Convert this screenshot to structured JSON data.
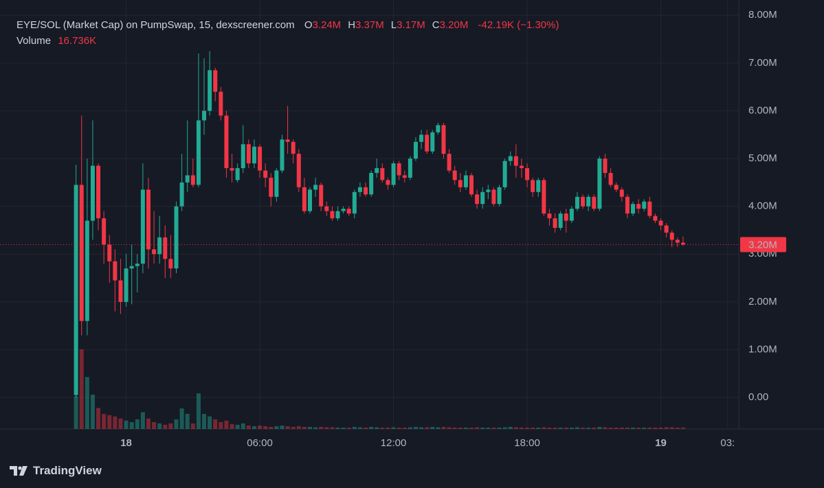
{
  "chart_data": {
    "type": "candlestick",
    "title": "EYE/SOL (Market Cap) on PumpSwap, 15, dexscreener.com",
    "ohlc_legend": [
      {
        "label": "O",
        "value": "3.24M"
      },
      {
        "label": "H",
        "value": "3.37M"
      },
      {
        "label": "L",
        "value": "3.17M"
      },
      {
        "label": "C",
        "value": "3.20M"
      }
    ],
    "change": "-42.19K (−1.30%)",
    "volume_name": "Volume",
    "volume_value": "16.736K",
    "up_color": "#22ab94",
    "down_color": "#f23645",
    "grid": true,
    "x": [
      -2.25,
      -2,
      -1.75,
      -1.5,
      -1.25,
      -1,
      -0.75,
      -0.5,
      -0.25,
      0,
      0.25,
      0.5,
      0.75,
      1,
      1.25,
      1.5,
      1.75,
      2,
      2.25,
      2.5,
      2.75,
      3,
      3.25,
      3.5,
      3.75,
      4,
      4.25,
      4.5,
      4.75,
      5,
      5.25,
      5.5,
      5.75,
      6,
      6.25,
      6.5,
      6.75,
      7,
      7.25,
      7.5,
      7.75,
      8,
      8.25,
      8.5,
      8.75,
      9,
      9.25,
      9.5,
      9.75,
      10,
      10.25,
      10.5,
      10.75,
      11,
      11.25,
      11.5,
      11.75,
      12,
      12.25,
      12.5,
      12.75,
      13,
      13.25,
      13.5,
      13.75,
      14,
      14.25,
      14.5,
      14.75,
      15,
      15.25,
      15.5,
      15.75,
      16,
      16.25,
      16.5,
      16.75,
      17,
      17.25,
      17.5,
      17.75,
      18,
      18.25,
      18.5,
      18.75,
      19,
      19.25,
      19.5,
      19.75,
      20,
      20.25,
      20.5,
      20.75,
      21,
      21.25,
      21.5,
      21.75,
      22,
      22.25,
      22.5,
      22.75,
      23,
      23.25,
      23.5,
      23.75,
      24,
      24.25,
      24.5,
      24.75,
      25
    ],
    "open": [
      0.05,
      4.45,
      1.6,
      3.7,
      4.85,
      3.75,
      3.2,
      2.85,
      2.45,
      2.0,
      2.7,
      2.75,
      2.8,
      4.35,
      3.1,
      3.0,
      3.35,
      2.9,
      2.7,
      4.0,
      4.5,
      4.65,
      4.45,
      5.8,
      6.0,
      6.85,
      6.4,
      5.9,
      4.8,
      4.55,
      4.8,
      5.3,
      4.9,
      5.25,
      4.75,
      4.6,
      4.2,
      4.75,
      5.4,
      5.35,
      5.1,
      4.4,
      3.9,
      4.35,
      4.45,
      4.0,
      3.9,
      3.75,
      3.9,
      3.95,
      3.85,
      4.3,
      4.4,
      4.25,
      4.7,
      4.8,
      4.55,
      4.45,
      4.9,
      4.65,
      4.6,
      5.0,
      5.35,
      5.5,
      5.15,
      5.55,
      5.7,
      5.1,
      4.75,
      4.55,
      4.4,
      4.65,
      4.25,
      4.05,
      4.3,
      4.35,
      4.05,
      4.4,
      4.95,
      5.05,
      4.85,
      4.8,
      4.55,
      4.3,
      4.55,
      3.85,
      3.75,
      3.55,
      3.85,
      3.7,
      3.95,
      4.2,
      4.0,
      4.2,
      3.95,
      5.0,
      4.7,
      4.45,
      4.35,
      4.2,
      3.85,
      4.05,
      3.95,
      4.1,
      3.8,
      3.7,
      3.6,
      3.45,
      3.3,
      3.24
    ],
    "high": [
      4.87,
      5.9,
      5.0,
      5.8,
      4.9,
      3.9,
      3.4,
      3.1,
      2.9,
      3.0,
      3.2,
      3.0,
      4.9,
      4.6,
      3.9,
      3.8,
      3.6,
      3.4,
      4.1,
      5.1,
      5.8,
      5.0,
      7.2,
      7.1,
      7.25,
      6.9,
      6.5,
      6.0,
      5.1,
      4.9,
      5.7,
      5.4,
      5.4,
      5.3,
      4.9,
      4.7,
      4.8,
      5.5,
      6.1,
      5.4,
      5.2,
      4.6,
      4.4,
      4.6,
      4.5,
      4.1,
      4.0,
      4.0,
      4.0,
      4.0,
      4.35,
      4.5,
      4.5,
      4.75,
      5.0,
      4.9,
      4.6,
      4.95,
      4.95,
      4.75,
      5.05,
      5.45,
      5.6,
      5.6,
      5.6,
      5.75,
      5.75,
      5.2,
      4.85,
      4.7,
      4.75,
      4.7,
      4.35,
      4.4,
      4.45,
      4.4,
      4.45,
      5.0,
      5.15,
      5.3,
      5.0,
      4.9,
      4.6,
      4.6,
      4.6,
      3.95,
      3.85,
      3.9,
      3.95,
      4.0,
      4.3,
      4.25,
      4.25,
      4.25,
      5.05,
      5.1,
      4.8,
      4.5,
      4.4,
      4.25,
      4.1,
      4.15,
      4.15,
      4.2,
      3.85,
      3.75,
      3.65,
      3.5,
      3.35,
      3.37
    ],
    "low": [
      0,
      1.3,
      1.3,
      3.3,
      3.5,
      2.8,
      2.4,
      1.8,
      1.75,
      1.9,
      1.95,
      2.2,
      2.6,
      2.7,
      2.8,
      2.8,
      2.5,
      2.5,
      2.6,
      3.9,
      4.3,
      4.4,
      4.4,
      5.5,
      5.9,
      6.2,
      5.8,
      4.6,
      4.5,
      4.5,
      4.7,
      4.8,
      4.8,
      4.6,
      4.4,
      4.0,
      4.1,
      4.7,
      5.1,
      4.9,
      4.3,
      3.85,
      3.85,
      4.2,
      3.9,
      3.8,
      3.7,
      3.7,
      3.85,
      3.8,
      3.75,
      4.2,
      4.2,
      4.2,
      4.6,
      4.5,
      4.35,
      4.4,
      4.55,
      4.5,
      4.55,
      4.95,
      5.2,
      5.1,
      5.1,
      5.5,
      5.0,
      4.7,
      4.45,
      4.3,
      4.35,
      4.2,
      3.95,
      3.95,
      4.15,
      4.0,
      4.0,
      4.35,
      4.85,
      4.6,
      4.6,
      4.4,
      4.2,
      4.2,
      3.8,
      3.6,
      3.45,
      3.5,
      3.45,
      3.65,
      3.9,
      3.95,
      3.9,
      3.9,
      3.9,
      4.6,
      4.4,
      4.3,
      4.1,
      3.75,
      3.8,
      3.85,
      3.9,
      3.75,
      3.65,
      3.5,
      3.35,
      3.15,
      3.15,
      3.17
    ],
    "close": [
      4.45,
      1.6,
      3.7,
      4.85,
      3.75,
      3.2,
      2.85,
      2.45,
      2.0,
      2.7,
      2.75,
      2.8,
      4.35,
      3.1,
      3.0,
      3.35,
      2.9,
      2.7,
      4.0,
      4.5,
      4.65,
      4.45,
      5.8,
      6.0,
      6.85,
      6.4,
      5.9,
      4.8,
      4.75,
      4.8,
      5.3,
      4.9,
      5.25,
      4.75,
      4.6,
      4.2,
      4.75,
      5.4,
      5.35,
      5.1,
      4.4,
      3.9,
      4.35,
      4.45,
      4.0,
      3.9,
      3.75,
      3.9,
      3.95,
      3.85,
      4.3,
      4.4,
      4.25,
      4.7,
      4.8,
      4.55,
      4.45,
      4.9,
      4.65,
      4.6,
      5.0,
      5.35,
      5.5,
      5.15,
      5.55,
      5.7,
      5.1,
      4.75,
      4.55,
      4.4,
      4.65,
      4.25,
      4.05,
      4.3,
      4.35,
      4.05,
      4.4,
      4.95,
      5.05,
      4.85,
      4.8,
      4.55,
      4.3,
      4.55,
      3.85,
      3.75,
      3.55,
      3.85,
      3.7,
      3.95,
      4.2,
      4.0,
      4.2,
      3.95,
      5.0,
      4.7,
      4.45,
      4.35,
      4.2,
      3.85,
      4.05,
      3.95,
      4.1,
      3.8,
      3.7,
      3.6,
      3.45,
      3.3,
      3.24,
      3.2
    ],
    "volume": [
      390000,
      950000,
      620000,
      410000,
      250000,
      180000,
      165000,
      150000,
      125000,
      100000,
      82000,
      115000,
      200000,
      125000,
      82000,
      66000,
      50000,
      66000,
      115000,
      245000,
      180000,
      66000,
      425000,
      180000,
      150000,
      115000,
      82000,
      100000,
      58000,
      50000,
      66000,
      41000,
      33000,
      41000,
      33000,
      25000,
      33000,
      41000,
      33000,
      25000,
      33000,
      25000,
      25000,
      20000,
      25000,
      20000,
      20000,
      16000,
      16000,
      16000,
      25000,
      20000,
      16000,
      25000,
      20000,
      16000,
      16000,
      20000,
      16000,
      16000,
      20000,
      25000,
      20000,
      20000,
      25000,
      20000,
      25000,
      20000,
      16000,
      16000,
      16000,
      16000,
      20000,
      16000,
      16000,
      16000,
      16000,
      20000,
      25000,
      20000,
      16000,
      16000,
      16000,
      16000,
      20000,
      16000,
      16000,
      16000,
      16000,
      16000,
      20000,
      16000,
      16000,
      16000,
      25000,
      20000,
      16000,
      16000,
      16000,
      16000,
      16000,
      16000,
      16000,
      16000,
      16000,
      16000,
      20000,
      20000,
      16000,
      16736
    ],
    "xlim": [
      -5.2,
      27.5
    ],
    "xticks": [
      {
        "value": 0,
        "label": "18"
      },
      {
        "value": 6,
        "label": "06:00"
      },
      {
        "value": 12,
        "label": "12:00"
      },
      {
        "value": 18,
        "label": "18:00"
      },
      {
        "value": 24,
        "label": "19"
      },
      {
        "value": 27,
        "label": "03:"
      }
    ],
    "ylim": [
      -0.66,
      8.32
    ],
    "yticks": [
      {
        "value": 0,
        "label": "0.00"
      },
      {
        "value": 1,
        "label": "1.00M"
      },
      {
        "value": 2,
        "label": "2.00M"
      },
      {
        "value": 3,
        "label": "3.00M"
      },
      {
        "value": 4,
        "label": "4.00M"
      },
      {
        "value": 5,
        "label": "5.00M"
      },
      {
        "value": 6,
        "label": "6.00M"
      },
      {
        "value": 7,
        "label": "7.00M"
      },
      {
        "value": 8,
        "label": "8.00M"
      }
    ],
    "last_price": {
      "value": 3.2,
      "label": "3.20M"
    }
  },
  "brand": "TradingView"
}
